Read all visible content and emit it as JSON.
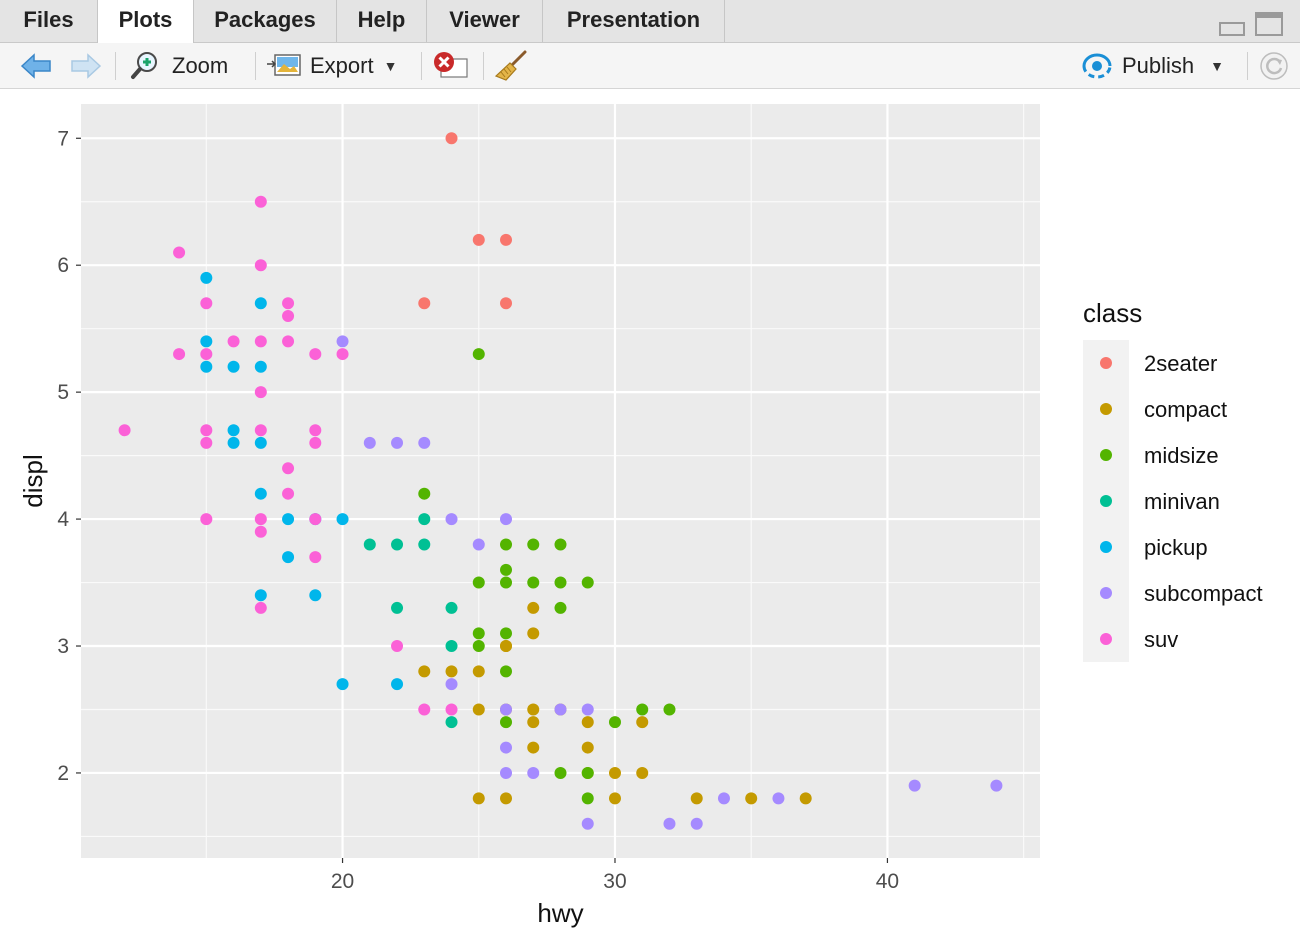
{
  "tabs": [
    {
      "label": "Files",
      "active": false
    },
    {
      "label": "Plots",
      "active": true
    },
    {
      "label": "Packages",
      "active": false
    },
    {
      "label": "Help",
      "active": false
    },
    {
      "label": "Viewer",
      "active": false
    },
    {
      "label": "Presentation",
      "active": false
    }
  ],
  "toolbar": {
    "back_icon": "arrow-left-icon",
    "forward_icon": "arrow-right-icon",
    "zoom_label": "Zoom",
    "export_label": "Export",
    "publish_label": "Publish",
    "accent": "#1a8fd6"
  },
  "chart_data": {
    "type": "scatter",
    "title": "",
    "xlabel": "hwy",
    "ylabel": "displ",
    "xlim": [
      10.4,
      45.6
    ],
    "ylim": [
      1.33,
      7.27
    ],
    "xticks": [
      20,
      30,
      40
    ],
    "yticks": [
      2,
      3,
      4,
      5,
      6,
      7
    ],
    "grid": true,
    "legend_title": "class",
    "legend_position": "right",
    "series": [
      {
        "name": "2seater",
        "color": "#F8766D",
        "points": [
          [
            24,
            7.0
          ],
          [
            25,
            6.2
          ],
          [
            26,
            6.2
          ],
          [
            23,
            5.7
          ],
          [
            26,
            5.7
          ]
        ]
      },
      {
        "name": "compact",
        "color": "#C49A00",
        "points": [
          [
            23,
            2.8
          ],
          [
            24,
            2.8
          ],
          [
            25,
            2.8
          ],
          [
            26,
            3.0
          ],
          [
            26,
            3.0
          ],
          [
            27,
            3.3
          ],
          [
            27,
            3.1
          ],
          [
            25,
            2.5
          ],
          [
            26,
            2.5
          ],
          [
            27,
            2.5
          ],
          [
            28,
            2.5
          ],
          [
            27,
            2.4
          ],
          [
            29,
            2.4
          ],
          [
            31,
            2.4
          ],
          [
            27,
            2.2
          ],
          [
            29,
            2.2
          ],
          [
            29,
            2.0
          ],
          [
            30,
            2.0
          ],
          [
            31,
            2.0
          ],
          [
            25,
            1.8
          ],
          [
            26,
            1.8
          ],
          [
            30,
            1.8
          ],
          [
            33,
            1.8
          ],
          [
            35,
            1.8
          ],
          [
            37,
            1.8
          ]
        ]
      },
      {
        "name": "midsize",
        "color": "#53B400",
        "points": [
          [
            25,
            5.3
          ],
          [
            23,
            4.2
          ],
          [
            26,
            3.8
          ],
          [
            27,
            3.8
          ],
          [
            28,
            3.8
          ],
          [
            26,
            3.6
          ],
          [
            25,
            3.5
          ],
          [
            26,
            3.5
          ],
          [
            27,
            3.5
          ],
          [
            28,
            3.5
          ],
          [
            29,
            3.5
          ],
          [
            28,
            3.3
          ],
          [
            25,
            3.1
          ],
          [
            26,
            3.1
          ],
          [
            25,
            3.0
          ],
          [
            26,
            2.8
          ],
          [
            31,
            2.5
          ],
          [
            32,
            2.5
          ],
          [
            26,
            2.4
          ],
          [
            30,
            2.4
          ],
          [
            28,
            2.0
          ],
          [
            29,
            2.0
          ],
          [
            29,
            1.8
          ]
        ]
      },
      {
        "name": "minivan",
        "color": "#00C094",
        "points": [
          [
            23,
            4.0
          ],
          [
            21,
            3.8
          ],
          [
            22,
            3.8
          ],
          [
            23,
            3.8
          ],
          [
            22,
            3.3
          ],
          [
            24,
            3.3
          ],
          [
            24,
            3.0
          ],
          [
            24,
            2.4
          ]
        ]
      },
      {
        "name": "pickup",
        "color": "#00B6EB",
        "points": [
          [
            15,
            5.9
          ],
          [
            17,
            5.7
          ],
          [
            15,
            5.4
          ],
          [
            15,
            5.2
          ],
          [
            16,
            5.2
          ],
          [
            17,
            5.2
          ],
          [
            16,
            4.7
          ],
          [
            16,
            4.6
          ],
          [
            17,
            4.6
          ],
          [
            17,
            4.2
          ],
          [
            18,
            4.0
          ],
          [
            19,
            4.0
          ],
          [
            20,
            4.0
          ],
          [
            18,
            3.7
          ],
          [
            17,
            3.4
          ],
          [
            19,
            3.4
          ],
          [
            20,
            2.7
          ],
          [
            22,
            2.7
          ]
        ]
      },
      {
        "name": "subcompact",
        "color": "#A58AFF",
        "points": [
          [
            20,
            5.4
          ],
          [
            21,
            4.6
          ],
          [
            22,
            4.6
          ],
          [
            23,
            4.6
          ],
          [
            24,
            4.0
          ],
          [
            26,
            4.0
          ],
          [
            25,
            3.8
          ],
          [
            24,
            2.7
          ],
          [
            26,
            2.5
          ],
          [
            28,
            2.5
          ],
          [
            29,
            2.5
          ],
          [
            26,
            2.2
          ],
          [
            26,
            2.0
          ],
          [
            27,
            2.0
          ],
          [
            29,
            1.6
          ],
          [
            32,
            1.6
          ],
          [
            33,
            1.6
          ],
          [
            34,
            1.8
          ],
          [
            36,
            1.8
          ],
          [
            41,
            1.9
          ],
          [
            44,
            1.9
          ]
        ]
      },
      {
        "name": "suv",
        "color": "#FB61D7",
        "points": [
          [
            17,
            6.5
          ],
          [
            14,
            6.1
          ],
          [
            17,
            6.0
          ],
          [
            15,
            5.7
          ],
          [
            18,
            5.7
          ],
          [
            18,
            5.6
          ],
          [
            16,
            5.4
          ],
          [
            17,
            5.4
          ],
          [
            18,
            5.4
          ],
          [
            14,
            5.3
          ],
          [
            15,
            5.3
          ],
          [
            19,
            5.3
          ],
          [
            20,
            5.3
          ],
          [
            17,
            5.0
          ],
          [
            12,
            4.7
          ],
          [
            15,
            4.7
          ],
          [
            17,
            4.7
          ],
          [
            19,
            4.7
          ],
          [
            15,
            4.6
          ],
          [
            19,
            4.6
          ],
          [
            18,
            4.4
          ],
          [
            18,
            4.2
          ],
          [
            15,
            4.0
          ],
          [
            17,
            4.0
          ],
          [
            19,
            4.0
          ],
          [
            17,
            3.9
          ],
          [
            19,
            3.7
          ],
          [
            17,
            3.3
          ],
          [
            22,
            3.0
          ],
          [
            23,
            2.5
          ],
          [
            24,
            2.5
          ]
        ]
      }
    ]
  }
}
